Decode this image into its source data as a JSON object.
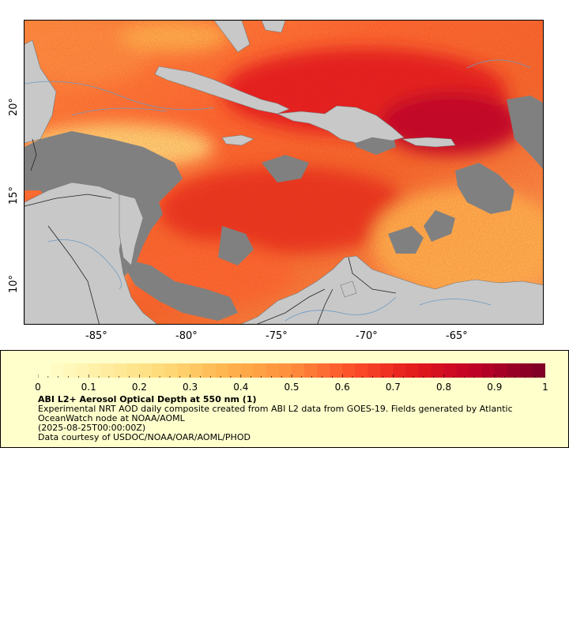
{
  "map": {
    "lon_ticks": [
      "-85°",
      "-80°",
      "-75°",
      "-70°",
      "-65°"
    ],
    "lat_ticks": [
      "10°",
      "15°",
      "20°"
    ],
    "colors": {
      "land": "#c8c8c8",
      "no_data": "#808080",
      "rivers": "#6b9ac4",
      "borders": "#222222"
    }
  },
  "legend": {
    "colorbar_ticks": [
      "0",
      "0.1",
      "0.2",
      "0.3",
      "0.4",
      "0.5",
      "0.6",
      "0.7",
      "0.8",
      "0.9",
      "1"
    ],
    "colormap": [
      "#ffffcc",
      "#ffeda0",
      "#fed976",
      "#feb24c",
      "#fd8d3c",
      "#fc4e2a",
      "#e31a1c",
      "#bd0026",
      "#800026"
    ],
    "title": "ABI L2+ Aerosol Optical Depth at 550 nm (1)",
    "description": "Experimental NRT AOD daily composite created from ABI L2 data from GOES-19. Fields generated by Atlantic OceanWatch node at NOAA/AOML",
    "time": "(2025-08-25T00:00:00Z)",
    "credit": "Data courtesy of USDOC/NOAA/OAR/AOML/PHOD"
  }
}
